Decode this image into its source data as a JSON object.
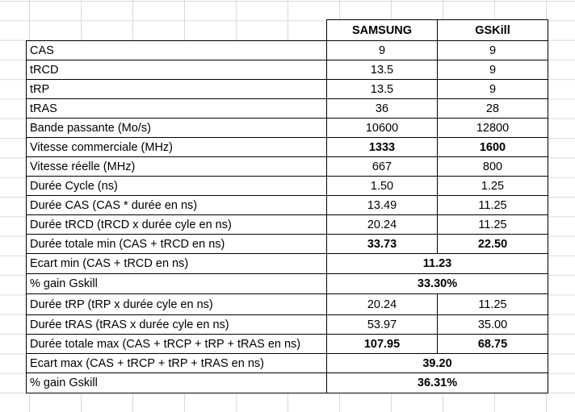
{
  "header": {
    "col2": "SAMSUNG",
    "col3": "GSKill"
  },
  "rows": [
    {
      "label": "CAS",
      "samsung": "9",
      "gskill": "9",
      "bold": false
    },
    {
      "label": "tRCD",
      "samsung": "13.5",
      "gskill": "9",
      "bold": false
    },
    {
      "label": "tRP",
      "samsung": "13.5",
      "gskill": "9",
      "bold": false
    },
    {
      "label": "tRAS",
      "samsung": "36",
      "gskill": "28",
      "bold": false
    },
    {
      "label": "Bande passante (Mo/s)",
      "samsung": "10600",
      "gskill": "12800",
      "bold": false
    },
    {
      "label": "Vitesse commerciale (MHz)",
      "samsung": "1333",
      "gskill": "1600",
      "bold": true
    },
    {
      "label": "Vitesse réelle (MHz)",
      "samsung": "667",
      "gskill": "800",
      "bold": false
    },
    {
      "label": "Durée Cycle (ns)",
      "samsung": "1.50",
      "gskill": "1.25",
      "bold": false
    },
    {
      "label": "Durée CAS (CAS * durée en ns)",
      "samsung": "13.49",
      "gskill": "11.25",
      "bold": false
    },
    {
      "label": "Durée tRCD (tRCD x durée cyle en ns)",
      "samsung": "20.24",
      "gskill": "11.25",
      "bold": false
    },
    {
      "label": "Durée totale min (CAS + tRCD en ns)",
      "samsung": "33.73",
      "gskill": "22.50",
      "bold": true
    },
    {
      "label": "Ecart min (CAS + tRCD en ns)",
      "merged": "11.23"
    },
    {
      "label": "% gain Gskill",
      "merged": "33.30%"
    },
    {
      "label": "Durée tRP (tRP x durée cyle en ns)",
      "samsung": "20.24",
      "gskill": "11.25",
      "bold": false
    },
    {
      "label": "Durée tRAS (tRAS x durée cyle en ns)",
      "samsung": "53.97",
      "gskill": "35.00",
      "bold": false
    },
    {
      "label": "Durée totale max (CAS + tRCP + tRP + tRAS en ns)",
      "samsung": "107.95",
      "gskill": "68.75",
      "bold": true
    },
    {
      "label": "Ecart max (CAS + tRCP + tRP + tRAS en ns)",
      "merged": "39.20"
    },
    {
      "label": "% gain Gskill",
      "merged": "36.31%"
    }
  ]
}
